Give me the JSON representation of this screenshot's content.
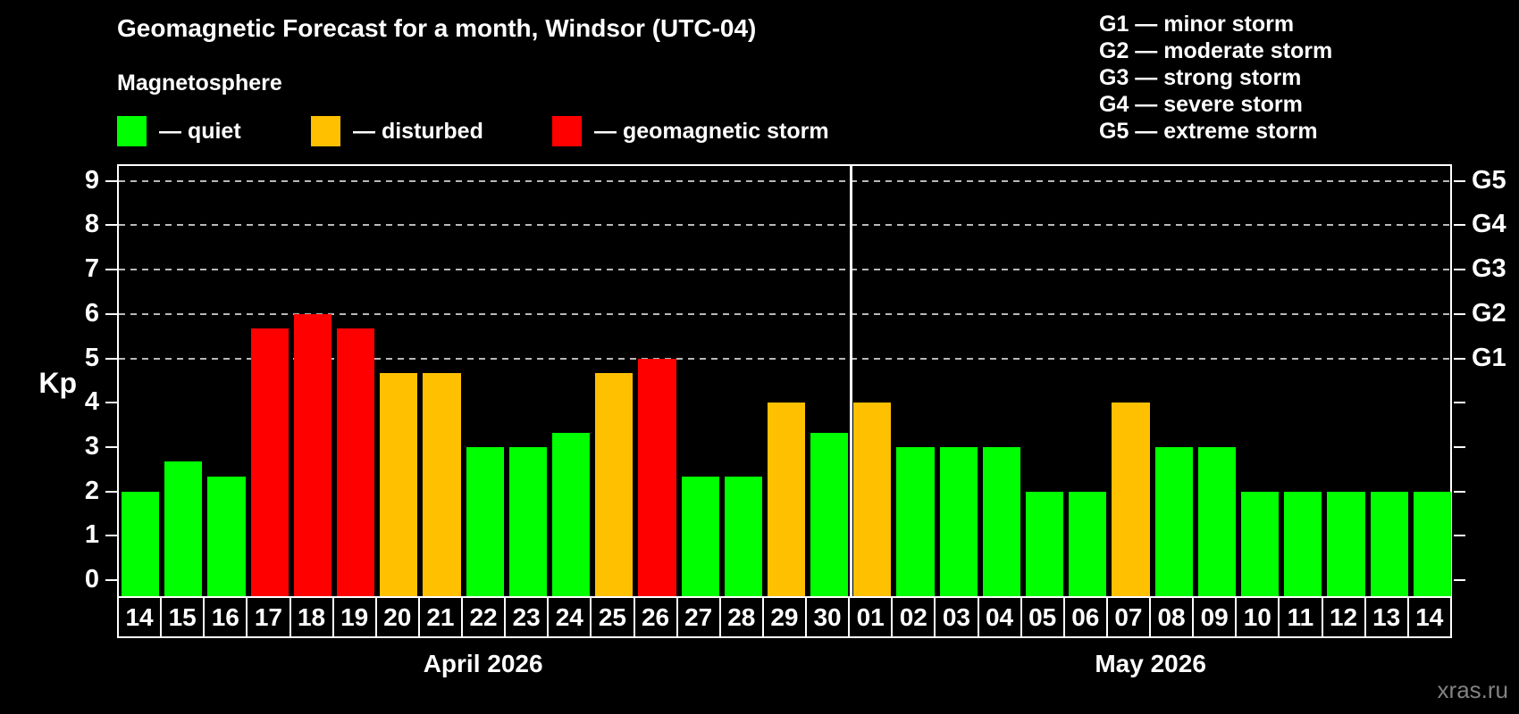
{
  "title": "Geomagnetic Forecast for a month, Windsor (UTC-04)",
  "subtitle": "Magnetosphere",
  "legend": {
    "quiet_label": "— quiet",
    "disturbed_label": "— disturbed",
    "storm_label": "— geomagnetic storm"
  },
  "g_legend": {
    "g1": "G1 — minor storm",
    "g2": "G2 — moderate storm",
    "g3": "G3 — strong storm",
    "g4": "G4 — severe storm",
    "g5": "G5 — extreme storm"
  },
  "watermark": "xras.ru",
  "colors": {
    "quiet": "#00FF00",
    "disturbed": "#FFC000",
    "storm": "#FF0000",
    "background": "#000000",
    "axis": "#FFFFFF",
    "gridline": "#B9B9B9",
    "watermark": "#828282"
  },
  "chart_data": {
    "type": "bar",
    "title": "Geomagnetic Forecast for a month, Windsor (UTC-04)",
    "xlabel": "",
    "ylabel": "Kp",
    "ylim": [
      0,
      9
    ],
    "yticks": [
      0,
      1,
      2,
      3,
      4,
      5,
      6,
      7,
      8,
      9
    ],
    "grid_at": [
      5,
      6,
      7,
      8,
      9
    ],
    "legend_position": "top",
    "right_axis": [
      {
        "label": "G1",
        "kp": 5
      },
      {
        "label": "G2",
        "kp": 6
      },
      {
        "label": "G3",
        "kp": 7
      },
      {
        "label": "G4",
        "kp": 8
      },
      {
        "label": "G5",
        "kp": 9
      }
    ],
    "months": [
      {
        "label": "April 2026",
        "days": 17
      },
      {
        "label": "May 2026",
        "days": 14
      }
    ],
    "categories": [
      "14",
      "15",
      "16",
      "17",
      "18",
      "19",
      "20",
      "21",
      "22",
      "23",
      "24",
      "25",
      "26",
      "27",
      "28",
      "29",
      "30",
      "01",
      "02",
      "03",
      "04",
      "05",
      "06",
      "07",
      "08",
      "09",
      "10",
      "11",
      "12",
      "13",
      "14"
    ],
    "values": [
      2.0,
      2.67,
      2.33,
      5.67,
      6.0,
      5.67,
      4.67,
      4.67,
      3.0,
      3.0,
      3.33,
      4.67,
      5.0,
      2.33,
      2.33,
      4.0,
      3.33,
      4.0,
      3.0,
      3.0,
      3.0,
      2.0,
      2.0,
      4.0,
      3.0,
      3.0,
      2.0,
      2.0,
      2.0,
      2.0,
      2.0
    ],
    "levels": [
      "quiet",
      "quiet",
      "quiet",
      "storm",
      "storm",
      "storm",
      "disturbed",
      "disturbed",
      "quiet",
      "quiet",
      "quiet",
      "disturbed",
      "storm",
      "quiet",
      "quiet",
      "disturbed",
      "quiet",
      "disturbed",
      "quiet",
      "quiet",
      "quiet",
      "quiet",
      "quiet",
      "disturbed",
      "quiet",
      "quiet",
      "quiet",
      "quiet",
      "quiet",
      "quiet",
      "quiet"
    ]
  }
}
